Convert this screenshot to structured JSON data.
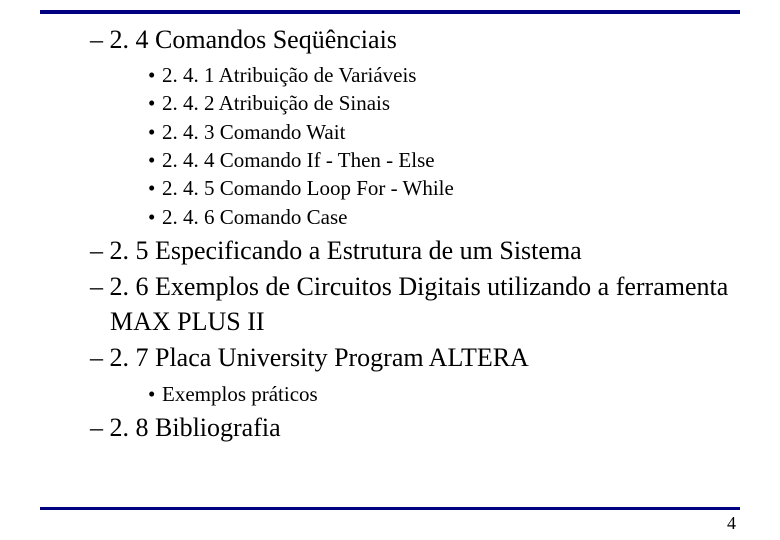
{
  "theme": {
    "rule_color": "#000080",
    "text_color": "#000000",
    "background": "#ffffff",
    "font_family": "Times New Roman",
    "level1_fontsize": 26,
    "level2_fontsize": 21
  },
  "page_number": "4",
  "outline": [
    {
      "label": "2. 4 Comandos Seqüênciais",
      "children": [
        {
          "label": "2. 4. 1 Atribuição de Variáveis"
        },
        {
          "label": "2. 4. 2 Atribuição de Sinais"
        },
        {
          "label": "2. 4. 3 Comando Wait"
        },
        {
          "label": "2. 4. 4 Comando If - Then - Else"
        },
        {
          "label": "2. 4. 5 Comando Loop For - While"
        },
        {
          "label": "2. 4. 6 Comando Case"
        }
      ]
    },
    {
      "label": "2. 5 Especificando a Estrutura de um Sistema",
      "children": []
    },
    {
      "label": "2. 6 Exemplos de Circuitos Digitais utilizando a ferramenta MAX PLUS II",
      "children": []
    },
    {
      "label": "2. 7 Placa University Program ALTERA",
      "children": [
        {
          "label": "Exemplos práticos"
        }
      ]
    },
    {
      "label": "2. 8 Bibliografia",
      "children": []
    }
  ]
}
